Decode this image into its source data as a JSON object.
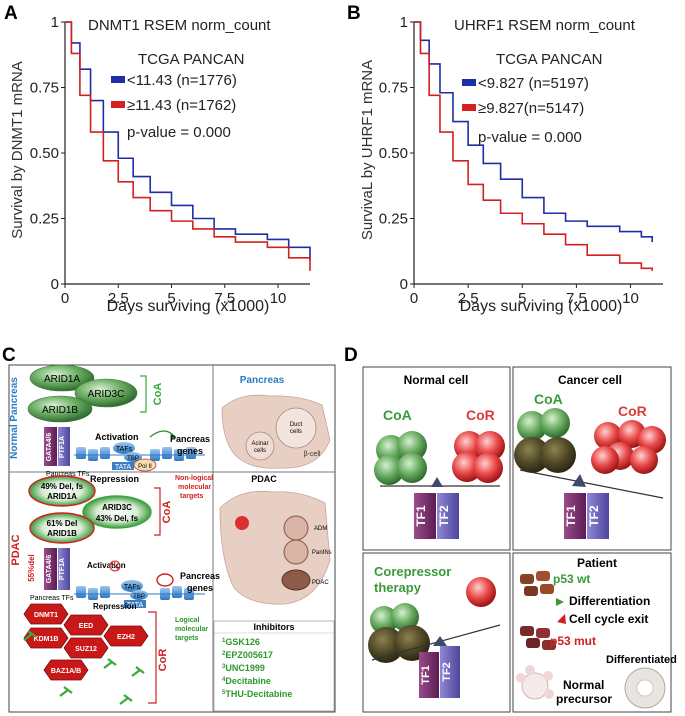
{
  "panel_labels": {
    "a": "A",
    "b": "B",
    "c": "C",
    "d": "D"
  },
  "chart_data": [
    {
      "type": "line",
      "title": "DNMT1 RSEM norm_count",
      "subtitle": "TCGA PANCAN",
      "xlabel": "Days surviving (x1000)",
      "ylabel": "Survival by DNMT1 mRNA",
      "xlim": [
        0,
        11.5
      ],
      "ylim": [
        0,
        1
      ],
      "xticks": [
        "0",
        "2.5",
        "5",
        "7.5",
        "10"
      ],
      "yticks": [
        "0",
        "0.25",
        "0.50",
        "0.75",
        "1"
      ],
      "pvalue": "p-value = 0.000",
      "series": [
        {
          "name": "<11.43 (n=1776)",
          "color": "#1c2fa8",
          "x": [
            0,
            0.3,
            0.7,
            1.2,
            1.8,
            2.5,
            3.2,
            4,
            5,
            6,
            7,
            8,
            9.5,
            10.5,
            11.5
          ],
          "y": [
            1,
            0.92,
            0.82,
            0.7,
            0.58,
            0.48,
            0.41,
            0.35,
            0.3,
            0.25,
            0.21,
            0.19,
            0.17,
            0.14,
            0.09
          ]
        },
        {
          "name": "≥11.43 (n=1762)",
          "color": "#d32020",
          "x": [
            0,
            0.3,
            0.7,
            1.2,
            1.8,
            2.5,
            3.2,
            4,
            5,
            6,
            7,
            8,
            9.5,
            10.5,
            11.5
          ],
          "y": [
            1,
            0.88,
            0.72,
            0.58,
            0.47,
            0.39,
            0.33,
            0.28,
            0.24,
            0.21,
            0.18,
            0.16,
            0.14,
            0.1,
            0.05
          ]
        }
      ]
    },
    {
      "type": "line",
      "title": "UHRF1 RSEM norm_count",
      "subtitle": "TCGA PANCAN",
      "xlabel": "Days surviving (x1000)",
      "ylabel": "SurvivaL by UHRF1 mRNA",
      "xlim": [
        0,
        11.5
      ],
      "ylim": [
        0,
        1
      ],
      "xticks": [
        "0",
        "2.5",
        "5",
        "7.5",
        "10"
      ],
      "yticks": [
        "0",
        "0.25",
        "0.50",
        "0.75",
        "1"
      ],
      "pvalue": "p-value = 0.000",
      "series": [
        {
          "name": "<9.827 (n=5197)",
          "color": "#1c2fa8",
          "x": [
            0,
            0.3,
            0.7,
            1.2,
            1.8,
            2.5,
            3.2,
            4,
            5,
            6,
            7,
            8,
            9.5,
            10.5,
            11
          ],
          "y": [
            1,
            0.93,
            0.84,
            0.73,
            0.62,
            0.53,
            0.46,
            0.4,
            0.33,
            0.27,
            0.24,
            0.22,
            0.2,
            0.18,
            0.16
          ]
        },
        {
          "name": "≥9.827(n=5147)",
          "color": "#d32020",
          "x": [
            0,
            0.3,
            0.7,
            1.2,
            1.8,
            2.5,
            3.2,
            4,
            5,
            6,
            7,
            8,
            9.5,
            10.5,
            11
          ],
          "y": [
            1,
            0.88,
            0.72,
            0.58,
            0.47,
            0.38,
            0.32,
            0.27,
            0.23,
            0.19,
            0.15,
            0.11,
            0.08,
            0.06,
            0.05
          ]
        }
      ]
    }
  ],
  "panel_c": {
    "normal_side": "Normal Pancreas",
    "pdac_side": "PDAC",
    "coa": "CoA",
    "cor": "CoR",
    "arid1a": "ARID1A",
    "arid3c": "ARID3C",
    "arid1b": "ARID1B",
    "gata": "GATA4/6",
    "ptf1a": "PTF1A",
    "activation": "Activation",
    "repression": "Repression",
    "pancreas_genes_1": "Pancreas",
    "pancreas_genes_2": "genes",
    "tafs": "TAFs",
    "tbp": "TBP",
    "tata": "TATA",
    "pol2": "Pol II",
    "pancreas_tfs": "Pancreas TFs",
    "pancreas_title": "Pancreas",
    "duct_1": "Duct",
    "duct_2": "cells",
    "acinar_1": "Acinar",
    "acinar_2": "cells",
    "beta": "β-cell",
    "pdac_title": "PDAC",
    "adm": "ADM",
    "panins": "PanINs",
    "pdac_label": "PDAC",
    "arid1a_pdac_1": "49% Del, fs",
    "arid1a_pdac_2": "ARID1A",
    "arid3c_pdac_1": "ARID3C",
    "arid3c_pdac_2": "43% Del, fs",
    "arid1b_pdac_1": "61% Del",
    "arid1b_pdac_2": "ARID1B",
    "gata_del": "55%del",
    "nonlogical_1": "Non-logical",
    "nonlogical_2": "molecular",
    "nonlogical_3": "targets",
    "logical_1": "Logical",
    "logical_2": "molecular",
    "logical_3": "targets",
    "cor_proteins": [
      "DNMT1",
      "EED",
      "KDM1B",
      "SUZ12",
      "EZH2",
      "BAZ1A/B"
    ],
    "inhibitors_title": "Inhibitors",
    "inhibitors": [
      {
        "sup": "1",
        "name": "GSK126"
      },
      {
        "sup": "2",
        "name": "EPZ005617"
      },
      {
        "sup": "3",
        "name": "UNC1999"
      },
      {
        "sup": "4",
        "name": "Decitabine"
      },
      {
        "sup": "5",
        "name": "THU-Decitabine"
      }
    ]
  },
  "panel_d": {
    "normal_cell": "Normal cell",
    "cancer_cell": "Cancer cell",
    "coa": "CoA",
    "cor": "CoR",
    "tf1": "TF1",
    "tf2": "TF2",
    "therapy_1": "Corepressor",
    "therapy_2": "therapy",
    "patient": "Patient",
    "p53wt": "p53 wt",
    "differentiation": "Differentiation",
    "cell_cycle_exit": "Cell cycle exit",
    "p53mut": "p53 mut",
    "differentiated": "Differentiated",
    "normal": "Normal",
    "precursor": "precursor",
    "colors": {
      "coa_green": "#5fa05f",
      "cor_red": "#e03a3a",
      "tf1_purple": "#7a2c6e",
      "tf2_purple": "#6c63b5",
      "dark_olive": "#4a4424"
    }
  }
}
